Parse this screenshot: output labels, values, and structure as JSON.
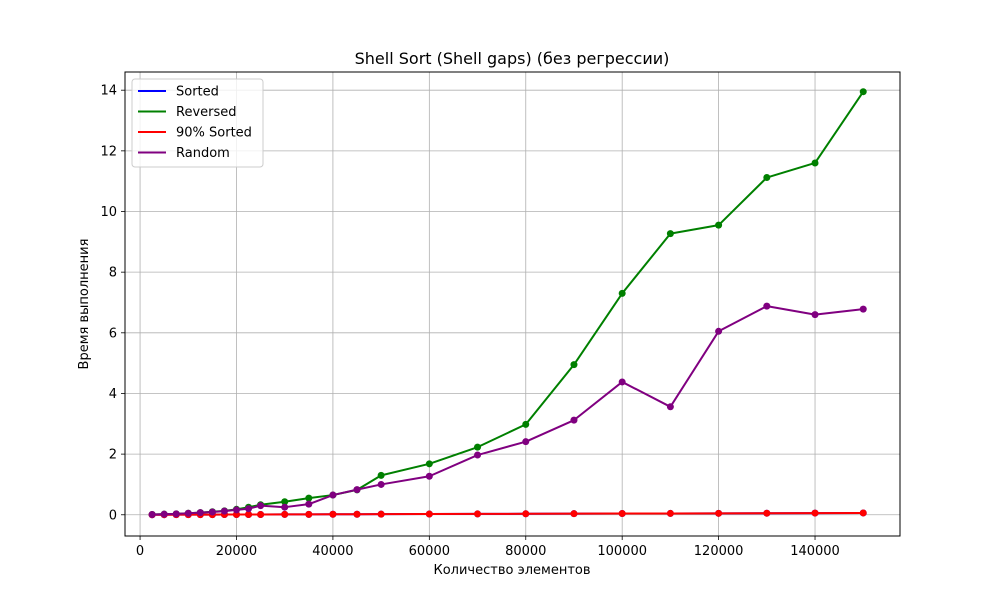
{
  "chart_data": {
    "type": "line",
    "title": "Shell Sort (Shell gaps) (без регрессии)",
    "xlabel": "Количество элементов",
    "ylabel": "Время выполнения",
    "xlim": [
      -3125,
      157625
    ],
    "ylim": [
      -0.7,
      14.6
    ],
    "xticks": [
      0,
      20000,
      40000,
      60000,
      80000,
      100000,
      120000,
      140000
    ],
    "yticks": [
      0,
      2,
      4,
      6,
      8,
      10,
      12,
      14
    ],
    "grid": true,
    "legend_position": "top-left",
    "x": [
      2500,
      5000,
      7500,
      10000,
      12500,
      15000,
      17500,
      20000,
      22500,
      25000,
      30000,
      35000,
      40000,
      45000,
      50000,
      60000,
      70000,
      80000,
      90000,
      100000,
      110000,
      120000,
      130000,
      140000,
      150000
    ],
    "series": [
      {
        "name": "Sorted",
        "color": "#0000ff",
        "values": [
          0.001,
          0.002,
          0.003,
          0.004,
          0.005,
          0.006,
          0.007,
          0.008,
          0.009,
          0.01,
          0.012,
          0.014,
          0.016,
          0.018,
          0.02,
          0.024,
          0.028,
          0.032,
          0.036,
          0.04,
          0.044,
          0.048,
          0.052,
          0.056,
          0.06
        ]
      },
      {
        "name": "Reversed",
        "color": "#008000",
        "values": [
          0.01,
          0.02,
          0.03,
          0.05,
          0.07,
          0.1,
          0.13,
          0.18,
          0.25,
          0.33,
          0.43,
          0.55,
          0.65,
          0.82,
          1.3,
          1.68,
          2.23,
          2.98,
          4.95,
          7.3,
          9.27,
          9.55,
          11.12,
          11.6,
          13.95
        ]
      },
      {
        "name": "90% Sorted",
        "color": "#ff0000",
        "values": [
          0.001,
          0.002,
          0.003,
          0.004,
          0.005,
          0.006,
          0.007,
          0.008,
          0.009,
          0.01,
          0.012,
          0.014,
          0.016,
          0.018,
          0.02,
          0.024,
          0.028,
          0.032,
          0.036,
          0.04,
          0.044,
          0.048,
          0.052,
          0.056,
          0.06
        ]
      },
      {
        "name": "Random",
        "color": "#800080",
        "values": [
          0.01,
          0.02,
          0.03,
          0.05,
          0.07,
          0.09,
          0.12,
          0.16,
          0.2,
          0.3,
          0.25,
          0.35,
          0.65,
          0.83,
          1.0,
          1.27,
          1.97,
          2.41,
          3.12,
          4.38,
          3.56,
          6.05,
          6.88,
          6.6,
          6.78
        ]
      }
    ]
  }
}
